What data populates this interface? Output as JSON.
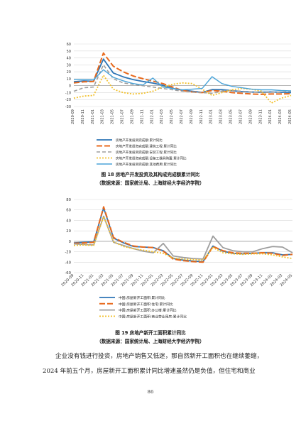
{
  "page": {
    "page_number": "86",
    "body_text": [
      "企业没有钱进行投资，房地产销售又低迷，那自然新开工面积也在继续萎缩，",
      "2024 年前五个月，房屋新开工面积累计同比增速虽然仍是负值，但住宅和商业"
    ]
  },
  "figures": [
    {
      "caption": "图 18 房地产开发投资及其构成完成额累计同比",
      "source": "（数据来源：国家统计局、上海财经大学经济学院）"
    },
    {
      "caption": "图 19 房地产新开工面积累计同比",
      "source": "（数据来源：国家统计局、上海财经大学经济学院）"
    }
  ],
  "chart_data": [
    {
      "type": "line",
      "title": "",
      "xlabel": "",
      "ylabel": "",
      "ylim": [
        -30,
        60
      ],
      "yticks": [
        -30,
        -20,
        -10,
        0,
        10,
        20,
        30,
        40,
        50,
        60
      ],
      "grid": "horizontal",
      "legend_position": "bottom",
      "categories": [
        "2020-09",
        "2020-11",
        "2021-01",
        "2021-03",
        "2021-05",
        "2021-07",
        "2021-09",
        "2021-11",
        "2022-01",
        "2022-03",
        "2022-05",
        "2022-07",
        "2022-09",
        "2022-11",
        "2023-01",
        "2023-03",
        "2023-05",
        "2023-07",
        "2023-09",
        "2023-11",
        "2024-01",
        "2024-03",
        "2024-05"
      ],
      "series": [
        {
          "name": "房地产开发投资完成额:累计同比",
          "color": "#2e75b6",
          "dash": "solid",
          "width": 1.8,
          "values": [
            5.6,
            6.8,
            6.3,
            38.3,
            18.3,
            12.7,
            8.8,
            6.0,
            3.7,
            0.7,
            -4.0,
            -6.4,
            -8.0,
            -9.8,
            -5.7,
            -5.8,
            -7.2,
            -8.5,
            -9.1,
            -9.4,
            -9.0,
            -9.5,
            -10.1
          ]
        },
        {
          "name": "房地产开发投资完成额:建筑工程:累计同比",
          "color": "#e8691c",
          "dash": "8,3",
          "width": 2.0,
          "values": [
            4.0,
            5.5,
            6.0,
            47.0,
            28.0,
            20.0,
            14.0,
            10.0,
            6.5,
            3.0,
            -2.0,
            -7.0,
            -9.0,
            -10.0,
            -7.0,
            -8.0,
            -10.0,
            -11.0,
            -12.0,
            -12.5,
            -12.0,
            -12.0,
            -11.5
          ]
        },
        {
          "name": "房地产开发投资完成额:安装工程:累计同比",
          "color": "#9e9e9e",
          "dash": "5,3",
          "width": 1.6,
          "values": [
            -8.0,
            -3.0,
            -2.0,
            30.0,
            10.0,
            4.0,
            2.0,
            0.0,
            -2.0,
            -4.0,
            -6.0,
            -8.0,
            -9.0,
            -10.0,
            -11.0,
            -8.0,
            -7.0,
            -8.0,
            -9.0,
            -10.0,
            -9.5,
            -9.0,
            -8.5
          ]
        },
        {
          "name": "房地产开发投资完成额:设备工器具购置:累计同比",
          "color": "#f2c12e",
          "dash": "2,2",
          "width": 1.8,
          "values": [
            -18.0,
            -15.0,
            -14.0,
            15.0,
            -5.0,
            -10.0,
            -12.0,
            -11.0,
            -8.0,
            -2.0,
            2.0,
            4.0,
            3.0,
            -5.0,
            -14.0,
            -10.0,
            -6.0,
            -4.0,
            -5.0,
            -8.0,
            -25.0,
            -18.0,
            -14.0
          ]
        },
        {
          "name": "房地产开发投资完成额:其他费用:累计同比",
          "color": "#4aa3d8",
          "dash": "solid",
          "width": 1.4,
          "values": [
            9.0,
            9.0,
            8.5,
            23.0,
            12.0,
            7.0,
            3.0,
            1.0,
            11.0,
            -2.0,
            -4.0,
            -6.0,
            -5.0,
            -4.0,
            13.0,
            3.0,
            -1.0,
            -3.0,
            -5.0,
            -6.0,
            -6.0,
            -7.0,
            -7.5
          ]
        }
      ]
    },
    {
      "type": "line",
      "title": "",
      "xlabel": "",
      "ylabel": "",
      "ylim": [
        -60,
        80
      ],
      "yticks": [
        -60,
        -40,
        -20,
        0,
        20,
        40,
        60,
        80
      ],
      "grid": "horizontal",
      "legend_position": "bottom",
      "categories": [
        "2020-09",
        "2020-11",
        "2021-01",
        "2021-03",
        "2021-05",
        "2021-07",
        "2021-09",
        "2021-11",
        "2022-01",
        "2022-03",
        "2022-05",
        "2022-07",
        "2022-09",
        "2022-11",
        "2023-01",
        "2023-03",
        "2023-05",
        "2023-07",
        "2023-09",
        "2023-11",
        "2024-01",
        "2024-03",
        "2024-05"
      ],
      "series": [
        {
          "name": "中国:房屋新开工面积:累计同比",
          "color": "#2e75b6",
          "dash": "solid",
          "width": 1.8,
          "values": [
            -3.0,
            -2.0,
            -1.0,
            64.0,
            6.0,
            -3.0,
            -10.0,
            -11.0,
            -12.0,
            -18.0,
            -33.0,
            -36.0,
            -38.0,
            -39.0,
            -9.0,
            -19.0,
            -23.0,
            -24.0,
            -23.0,
            -22.0,
            -22.0,
            -26.0,
            -25.0
          ]
        },
        {
          "name": "中国:房屋新开工面积:住宅:累计同比",
          "color": "#e8691c",
          "dash": "8,3",
          "width": 2.0,
          "values": [
            -4.0,
            -3.0,
            -2.0,
            66.0,
            7.0,
            -2.0,
            -9.0,
            -11.0,
            -12.0,
            -19.0,
            -34.0,
            -37.0,
            -39.0,
            -40.0,
            -10.0,
            -18.0,
            -22.0,
            -23.0,
            -23.0,
            -22.0,
            -23.0,
            -27.0,
            -25.0
          ]
        },
        {
          "name": "中国:房屋新开工面积:办公楼:累计同比",
          "color": "#9e9e9e",
          "dash": "solid",
          "width": 1.8,
          "values": [
            -5.0,
            -6.0,
            -7.0,
            48.0,
            -2.0,
            -8.0,
            -14.0,
            -19.0,
            -22.0,
            -4.0,
            -28.0,
            -31.0,
            -33.0,
            -34.0,
            10.0,
            -12.0,
            -18.0,
            -20.0,
            -20.0,
            -14.0,
            -10.0,
            -11.0,
            -22.0
          ]
        },
        {
          "name": "中国:房屋新开工面积:商业营业用房:累计同比",
          "color": "#f2c12e",
          "dash": "2,2",
          "width": 1.8,
          "values": [
            -8.0,
            -7.0,
            -8.0,
            47.0,
            -1.0,
            -10.0,
            -14.0,
            -17.0,
            -20.0,
            -23.0,
            -32.0,
            -34.0,
            -35.0,
            -36.0,
            -12.0,
            -22.0,
            -24.0,
            -25.0,
            -24.0,
            -24.0,
            -26.0,
            -30.0,
            -33.0
          ]
        }
      ]
    }
  ]
}
